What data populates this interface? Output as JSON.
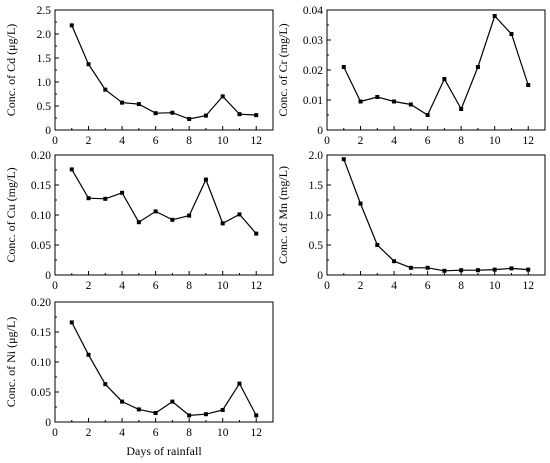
{
  "chart_data": [
    {
      "type": "line",
      "ylabel": "Conc. of Cd (μg/L)",
      "xlabel": "",
      "xlim": [
        0,
        13
      ],
      "ylim": [
        0,
        2.5
      ],
      "xticks": [
        "0",
        "2",
        "4",
        "6",
        "8",
        "10",
        "12"
      ],
      "yticks": [
        "0",
        "0.5",
        "1.0",
        "1.5",
        "2.0",
        "2.5"
      ],
      "ytick_values": [
        0,
        0.5,
        1.0,
        1.5,
        2.0,
        2.5
      ],
      "x": [
        1,
        2,
        3,
        4,
        5,
        6,
        7,
        8,
        9,
        10,
        11,
        12
      ],
      "values": [
        2.18,
        1.37,
        0.84,
        0.57,
        0.54,
        0.35,
        0.36,
        0.23,
        0.3,
        0.7,
        0.33,
        0.31
      ],
      "grid": false
    },
    {
      "type": "line",
      "ylabel": "Conc. of Cr (mg/L)",
      "xlabel": "",
      "xlim": [
        0,
        13
      ],
      "ylim": [
        0,
        0.04
      ],
      "xticks": [
        "0",
        "2",
        "4",
        "6",
        "8",
        "10",
        "12"
      ],
      "yticks": [
        "0",
        "0.01",
        "0.02",
        "0.03",
        "0.04"
      ],
      "ytick_values": [
        0,
        0.01,
        0.02,
        0.03,
        0.04
      ],
      "x": [
        1,
        2,
        3,
        4,
        5,
        6,
        7,
        8,
        9,
        10,
        11,
        12
      ],
      "values": [
        0.021,
        0.0095,
        0.011,
        0.0095,
        0.0085,
        0.005,
        0.017,
        0.007,
        0.021,
        0.038,
        0.032,
        0.015
      ],
      "grid": false
    },
    {
      "type": "line",
      "ylabel": "Conc. of Cu (mg/L)",
      "xlabel": "",
      "xlim": [
        0,
        13
      ],
      "ylim": [
        0,
        0.2
      ],
      "xticks": [
        "0",
        "2",
        "4",
        "6",
        "8",
        "10",
        "12"
      ],
      "yticks": [
        "0",
        "0.05",
        "0.10",
        "0.15",
        "0.20"
      ],
      "ytick_values": [
        0,
        0.05,
        0.1,
        0.15,
        0.2
      ],
      "x": [
        1,
        2,
        3,
        4,
        5,
        6,
        7,
        8,
        9,
        10,
        11,
        12
      ],
      "values": [
        0.176,
        0.128,
        0.127,
        0.137,
        0.088,
        0.106,
        0.092,
        0.099,
        0.159,
        0.086,
        0.101,
        0.069
      ],
      "grid": false
    },
    {
      "type": "line",
      "ylabel": "Conc. of Mn (mg/L)",
      "xlabel": "",
      "xlim": [
        0,
        13
      ],
      "ylim": [
        0,
        2.0
      ],
      "xticks": [
        "0",
        "2",
        "4",
        "6",
        "8",
        "10",
        "12"
      ],
      "yticks": [
        "0",
        "0.5",
        "1.0",
        "1.5",
        "2.0"
      ],
      "ytick_values": [
        0,
        0.5,
        1.0,
        1.5,
        2.0
      ],
      "x": [
        1,
        2,
        3,
        4,
        5,
        6,
        7,
        8,
        9,
        10,
        11,
        12
      ],
      "values": [
        1.93,
        1.19,
        0.5,
        0.23,
        0.12,
        0.12,
        0.07,
        0.08,
        0.08,
        0.09,
        0.11,
        0.09
      ],
      "grid": false
    },
    {
      "type": "line",
      "ylabel": "Conc. of Ni (μg/L)",
      "xlabel": "Days of rainfall",
      "xlim": [
        0,
        13
      ],
      "ylim": [
        0,
        0.2
      ],
      "xticks": [
        "0",
        "2",
        "4",
        "6",
        "8",
        "10",
        "12"
      ],
      "yticks": [
        "0",
        "0.05",
        "0.10",
        "0.15",
        "0.20"
      ],
      "ytick_values": [
        0,
        0.05,
        0.1,
        0.15,
        0.2
      ],
      "x": [
        1,
        2,
        3,
        4,
        5,
        6,
        7,
        8,
        9,
        10,
        11,
        12
      ],
      "values": [
        0.166,
        0.112,
        0.063,
        0.034,
        0.021,
        0.015,
        0.034,
        0.011,
        0.013,
        0.02,
        0.064,
        0.011
      ],
      "grid": false
    }
  ]
}
